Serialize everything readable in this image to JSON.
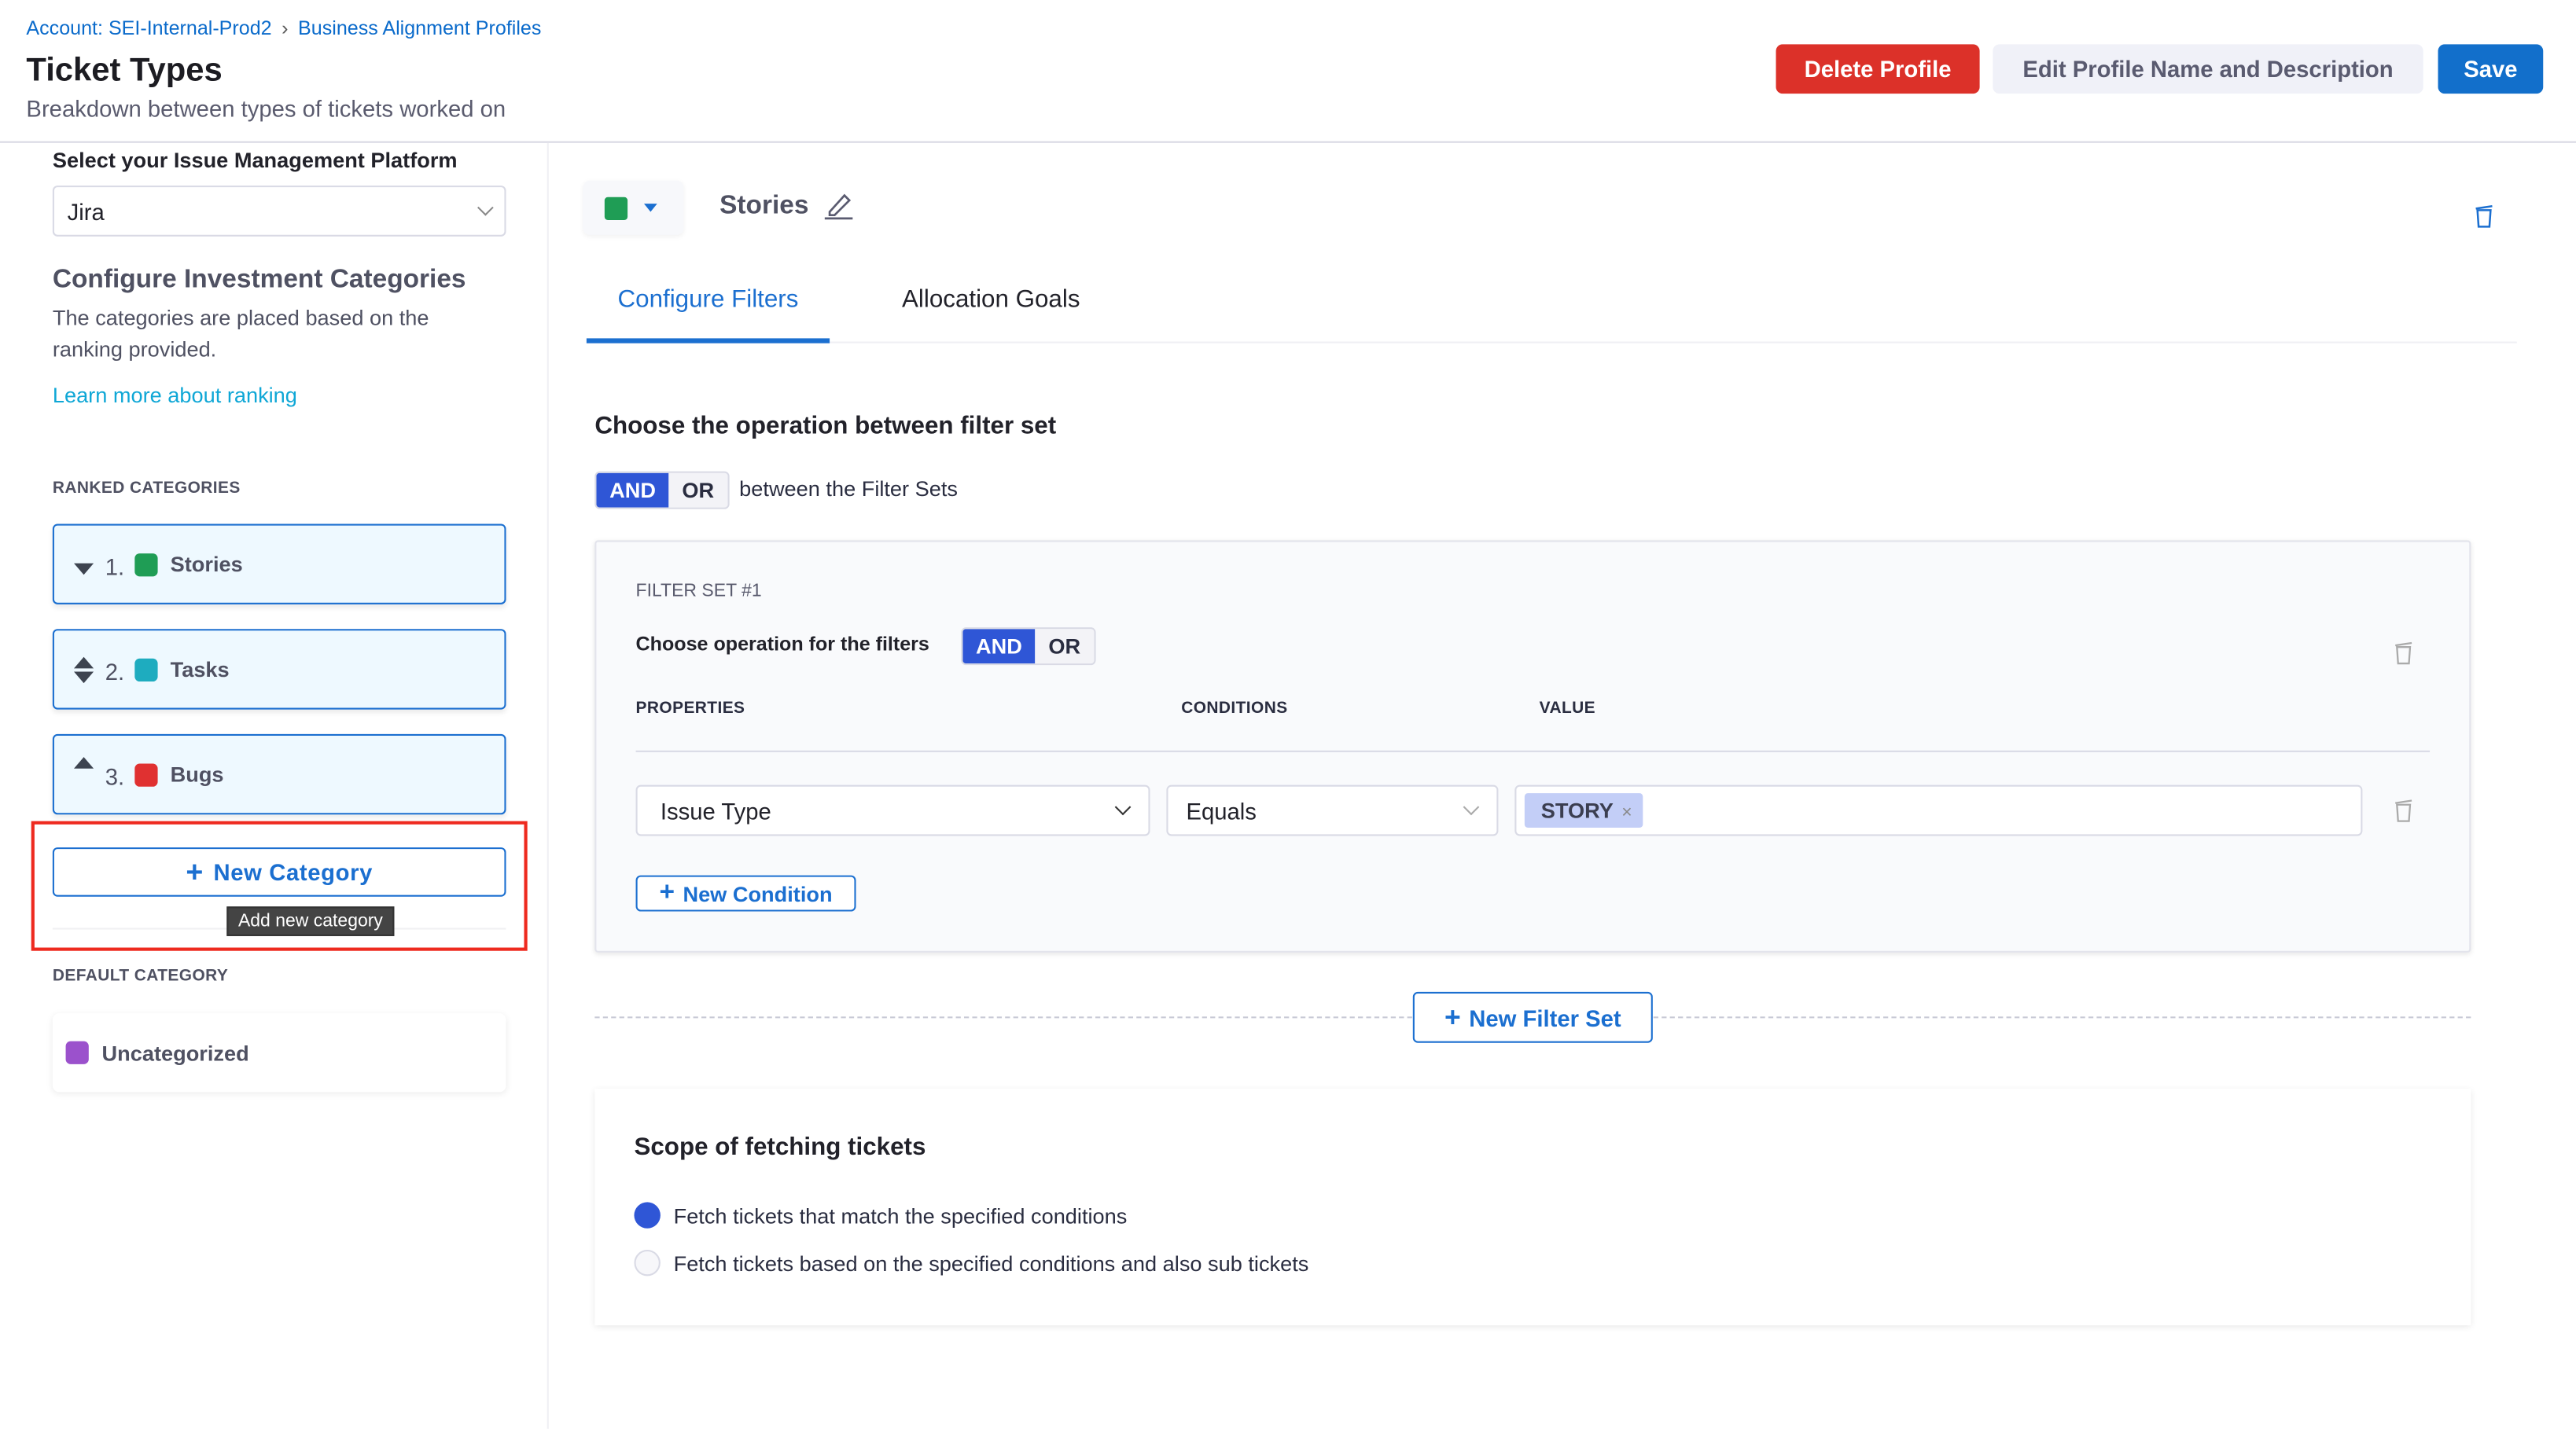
{
  "breadcrumb": {
    "account": "Account: SEI-Internal-Prod2",
    "separator": "›",
    "profiles": "Business Alignment Profiles"
  },
  "header": {
    "title": "Ticket Types",
    "subtitle": "Breakdown between types of tickets worked on",
    "delete_label": "Delete Profile",
    "edit_label": "Edit Profile Name and Description",
    "save_label": "Save"
  },
  "sidebar": {
    "platform_label": "Select your Issue Management Platform",
    "platform_value": "Jira",
    "configure_title": "Configure Investment Categories",
    "configure_desc": "The categories are placed based on the ranking provided.",
    "learn_more": "Learn more about ranking",
    "ranked_label": "RANKED CATEGORIES",
    "categories": [
      {
        "rank": "1.",
        "name": "Stories",
        "color": "#1f9d55"
      },
      {
        "rank": "2.",
        "name": "Tasks",
        "color": "#1eacbf"
      },
      {
        "rank": "3.",
        "name": "Bugs",
        "color": "#e03131"
      }
    ],
    "new_category": "New Category",
    "tooltip": "Add new category",
    "default_label": "DEFAULT CATEGORY",
    "default_category": {
      "name": "Uncategorized",
      "color": "#9b51cc"
    }
  },
  "main": {
    "category_name": "Stories",
    "category_color": "#1f9d55",
    "tabs": [
      {
        "label": "Configure Filters",
        "active": true
      },
      {
        "label": "Allocation Goals",
        "active": false
      }
    ],
    "operation_title": "Choose the operation between filter set",
    "and": "AND",
    "or": "OR",
    "between_text": "between the Filter Sets",
    "filter_set": {
      "title": "FILTER SET #1",
      "op_label": "Choose operation for the filters",
      "and": "AND",
      "or": "OR",
      "headers": {
        "properties": "PROPERTIES",
        "conditions": "CONDITIONS",
        "value": "VALUE"
      },
      "row": {
        "property": "Issue Type",
        "condition": "Equals",
        "value_tag": "STORY"
      },
      "new_condition": "New Condition"
    },
    "new_filter_set": "New Filter Set",
    "scope": {
      "title": "Scope of fetching tickets",
      "options": [
        {
          "label": "Fetch tickets that match the specified conditions",
          "selected": true
        },
        {
          "label": "Fetch tickets based on the specified conditions and also sub tickets",
          "selected": false
        }
      ]
    }
  }
}
